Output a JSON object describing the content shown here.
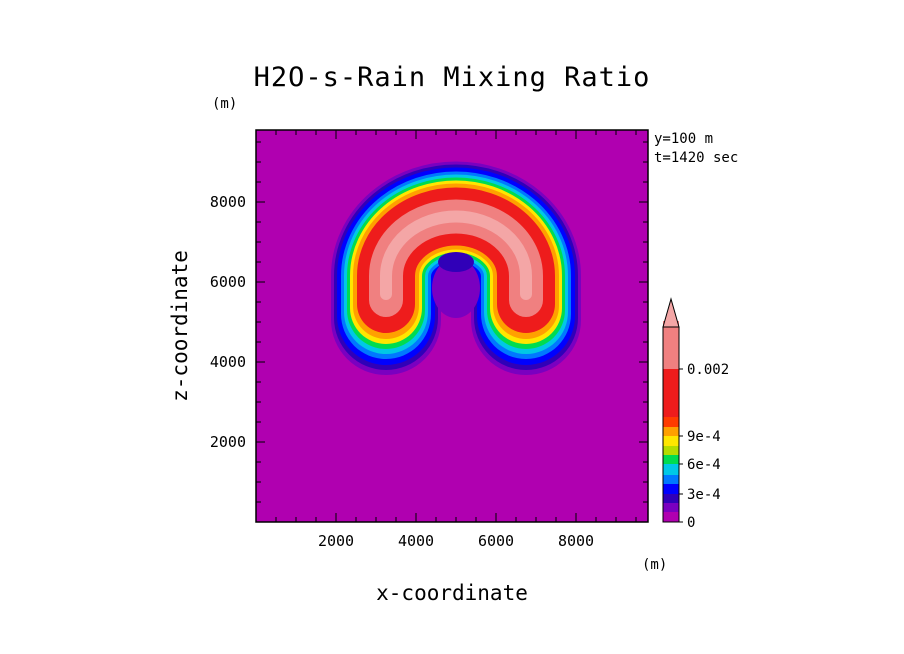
{
  "chart_data": {
    "type": "heatmap",
    "title": "H2O-s-Rain Mixing Ratio",
    "xlabel": "x-coordinate",
    "ylabel": "z-coordinate",
    "x_unit": "(m)",
    "y_unit": "(m)",
    "annotations": [
      "y=100 m",
      "t=1420 sec"
    ],
    "xlim": [
      0,
      9800
    ],
    "ylim": [
      0,
      9800
    ],
    "x_ticks": [
      2000,
      4000,
      6000,
      8000
    ],
    "y_ticks": [
      2000,
      4000,
      6000,
      8000
    ],
    "x_tick_labels": [
      "2000",
      "4000",
      "6000",
      "8000"
    ],
    "y_tick_labels": [
      "2000",
      "4000",
      "6000",
      "8000"
    ],
    "colorbar": {
      "levels": [
        0,
        0.0001,
        0.0002,
        0.0003,
        0.0004,
        0.0005,
        0.0006,
        0.0007,
        0.0008,
        0.0009,
        0.001,
        0.0015,
        0.002
      ],
      "colors": [
        "#b000b0",
        "#7a00c0",
        "#3000b8",
        "#0000ff",
        "#0078ff",
        "#00c8e6",
        "#00dc50",
        "#b4dc00",
        "#ffe600",
        "#ffa000",
        "#ff3c00",
        "#ee1c1c",
        "#f08080",
        "#f4a6a6"
      ],
      "tick_values": [
        0,
        0.0003,
        0.0006,
        0.0009,
        0.002
      ],
      "tick_labels": [
        "0",
        "3e-4",
        "6e-4",
        "9e-4",
        "0.002"
      ],
      "extend": "max"
    },
    "field_description_levels": {
      "background": 0,
      "arch_center_x": 5000,
      "arch_center_z": 6150,
      "arch_max_value": 0.002
    }
  }
}
